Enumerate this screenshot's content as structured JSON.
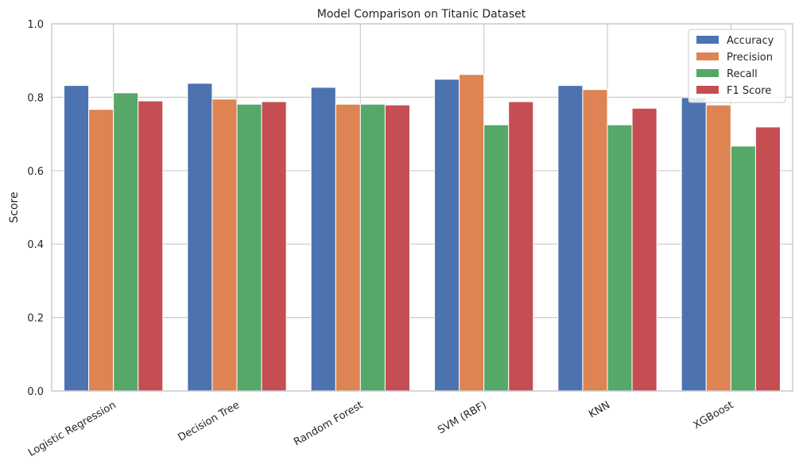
{
  "chart_data": {
    "type": "bar",
    "title": "Model Comparison on Titanic Dataset",
    "xlabel": "",
    "ylabel": "Score",
    "ylim": [
      0,
      1.0
    ],
    "yticks": [
      "0.0",
      "0.2",
      "0.4",
      "0.6",
      "0.8",
      "1.0"
    ],
    "grid": true,
    "legend_position": "top-right",
    "categories": [
      "Logistic Regression",
      "Decision Tree",
      "Random Forest",
      "SVM (RBF)",
      "KNN",
      "XGBoost"
    ],
    "series": [
      {
        "name": "Accuracy",
        "color": "#4c72b0",
        "values": [
          0.832,
          0.838,
          0.827,
          0.849,
          0.832,
          0.799
        ]
      },
      {
        "name": "Precision",
        "color": "#dd8452",
        "values": [
          0.767,
          0.795,
          0.781,
          0.862,
          0.821,
          0.779
        ]
      },
      {
        "name": "Recall",
        "color": "#55a868",
        "values": [
          0.812,
          0.781,
          0.781,
          0.725,
          0.725,
          0.667
        ]
      },
      {
        "name": "F1 Score",
        "color": "#c44e52",
        "values": [
          0.79,
          0.788,
          0.779,
          0.788,
          0.77,
          0.719
        ]
      }
    ]
  }
}
